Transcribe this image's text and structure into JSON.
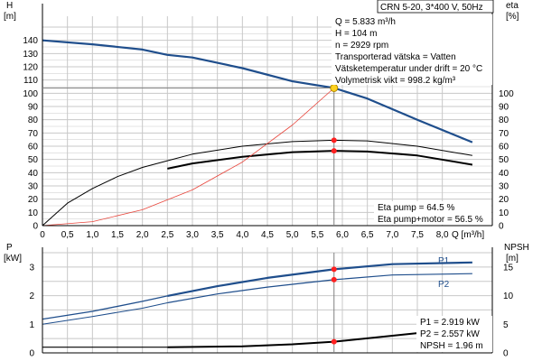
{
  "chart_data": [
    {
      "type": "line",
      "title": "CRN 5-20, 3*400 V, 50Hz",
      "xlabel": "Q [m³/h]",
      "xlim": [
        0,
        9.0
      ],
      "x_ticks": [
        0,
        0.5,
        1.0,
        1.5,
        2.0,
        2.5,
        3.0,
        3.5,
        4.0,
        4.5,
        5.0,
        5.5,
        6.0,
        6.5,
        7.0,
        7.5,
        8.0
      ],
      "x_tick_labels": [
        "0",
        "0,5",
        "1,0",
        "1,5",
        "2,0",
        "2,5",
        "3,0",
        "3,5",
        "4,0",
        "4,5",
        "5,0",
        "5,5",
        "6,0",
        "6,5",
        "7,0",
        "7,5",
        "8,0"
      ],
      "y_left": {
        "label_top": "H",
        "label_unit": "[m]",
        "lim": [
          0,
          150
        ],
        "ticks": [
          0,
          10,
          20,
          30,
          40,
          50,
          60,
          70,
          80,
          90,
          100,
          110,
          120,
          130,
          140
        ]
      },
      "y_right": {
        "label_top": "eta",
        "label_unit": "[%]",
        "lim": [
          0,
          150
        ],
        "ticks": [
          0,
          10,
          20,
          30,
          40,
          50,
          60,
          70,
          80,
          90,
          100
        ]
      },
      "grid": true,
      "series": [
        {
          "key": "h",
          "axis": "left",
          "color": "#1f4e8c",
          "width": 2.2,
          "points": [
            [
              0,
              140
            ],
            [
              1,
              137
            ],
            [
              2,
              133
            ],
            [
              2.5,
              129
            ],
            [
              3,
              127
            ],
            [
              4,
              119
            ],
            [
              5,
              109
            ],
            [
              5.833,
              104
            ],
            [
              6.5,
              96
            ],
            [
              7.5,
              80
            ],
            [
              8.6,
              63
            ]
          ]
        },
        {
          "key": "eta_thin",
          "axis": "right",
          "color": "#000000",
          "width": 1,
          "points": [
            [
              0,
              0
            ],
            [
              0.5,
              17
            ],
            [
              1,
              28
            ],
            [
              1.5,
              37
            ],
            [
              2,
              44
            ],
            [
              2.5,
              49
            ],
            [
              3,
              54
            ],
            [
              4,
              60
            ],
            [
              5,
              63.5
            ],
            [
              5.833,
              64.5
            ],
            [
              6.5,
              64
            ],
            [
              7.5,
              60
            ],
            [
              8.6,
              53
            ]
          ]
        },
        {
          "key": "eta_thick",
          "axis": "right",
          "color": "#000000",
          "width": 2,
          "points": [
            [
              2.5,
              43
            ],
            [
              3,
              47
            ],
            [
              4,
              52
            ],
            [
              5,
              55.5
            ],
            [
              5.833,
              56.5
            ],
            [
              6.5,
              56
            ],
            [
              7.5,
              53
            ],
            [
              8.6,
              46
            ]
          ]
        },
        {
          "key": "system",
          "axis": "left",
          "color": "#e8463c",
          "width": 0.8,
          "points": [
            [
              0,
              0
            ],
            [
              1,
              3
            ],
            [
              2,
              12
            ],
            [
              3,
              27
            ],
            [
              4,
              48
            ],
            [
              5,
              76
            ],
            [
              5.833,
              104
            ]
          ]
        }
      ],
      "operating_point": {
        "Q": 5.833,
        "H": 104,
        "eta_pump": 64.5,
        "eta_total": 56.5
      },
      "info_lines": [
        "Q = 5.833 m³/h",
        "H = 104 m",
        "n = 2929 rpm",
        "Transporterad vätska = Vatten",
        "Vätsketemperatur under drift = 20 °C",
        "Volymetrisk vikt = 998.2 kg/m³"
      ],
      "eta_lines": [
        "Eta pump = 64.5 %",
        "Eta pump+motor = 56.5 %"
      ]
    },
    {
      "type": "line",
      "xlim": [
        0,
        9.0
      ],
      "y_left": {
        "label_top": "P",
        "label_unit": "[kW]",
        "lim": [
          0,
          3.5
        ],
        "ticks": [
          0,
          1,
          2,
          3
        ]
      },
      "y_right": {
        "label_top": "NPSH",
        "label_unit": "[m]",
        "lim": [
          0,
          17.5
        ],
        "ticks": [
          0,
          5,
          10,
          15
        ]
      },
      "grid": true,
      "series": [
        {
          "key": "p1",
          "name": "P1",
          "axis": "left",
          "color": "#1f4e8c",
          "width": 2.2,
          "points_dashed": [
            [
              0,
              1.18
            ],
            [
              1,
              1.45
            ],
            [
              2,
              1.8
            ],
            [
              2.5,
              1.99
            ]
          ],
          "points": [
            [
              2.5,
              1.99
            ],
            [
              3.5,
              2.33
            ],
            [
              4.5,
              2.62
            ],
            [
              5.833,
              2.919
            ],
            [
              7,
              3.1
            ],
            [
              8.6,
              3.16
            ]
          ]
        },
        {
          "key": "p2",
          "name": "P2",
          "axis": "left",
          "color": "#1f4e8c",
          "width": 1.2,
          "points_dashed": [
            [
              0,
              1.0
            ],
            [
              1,
              1.27
            ],
            [
              2,
              1.56
            ],
            [
              2.5,
              1.75
            ]
          ],
          "points": [
            [
              2.5,
              1.75
            ],
            [
              3.5,
              2.06
            ],
            [
              4.5,
              2.3
            ],
            [
              5.833,
              2.557
            ],
            [
              7,
              2.72
            ],
            [
              8.6,
              2.77
            ]
          ]
        },
        {
          "key": "npsh",
          "axis": "right",
          "color": "#000000",
          "width": 2,
          "points_dashed": [
            [
              0,
              1.0
            ],
            [
              2.5,
              1.0
            ]
          ],
          "points": [
            [
              2.5,
              1.0
            ],
            [
              4,
              1.15
            ],
            [
              5,
              1.5
            ],
            [
              5.833,
              1.96
            ],
            [
              7,
              3.0
            ],
            [
              8,
              3.9
            ]
          ]
        }
      ],
      "operating_point": {
        "Q": 5.833,
        "P1": 2.919,
        "P2": 2.557,
        "NPSH": 1.96
      },
      "info_lines": [
        "P1 = 2.919 kW",
        "P2 = 2.557 kW",
        "NPSH = 1.96 m"
      ]
    }
  ],
  "colors": {
    "grid": "#c8c8c8",
    "marker": "#ff2020",
    "op_marker": "#ffd21f",
    "axis": "#000000",
    "op_line": "#808080"
  }
}
